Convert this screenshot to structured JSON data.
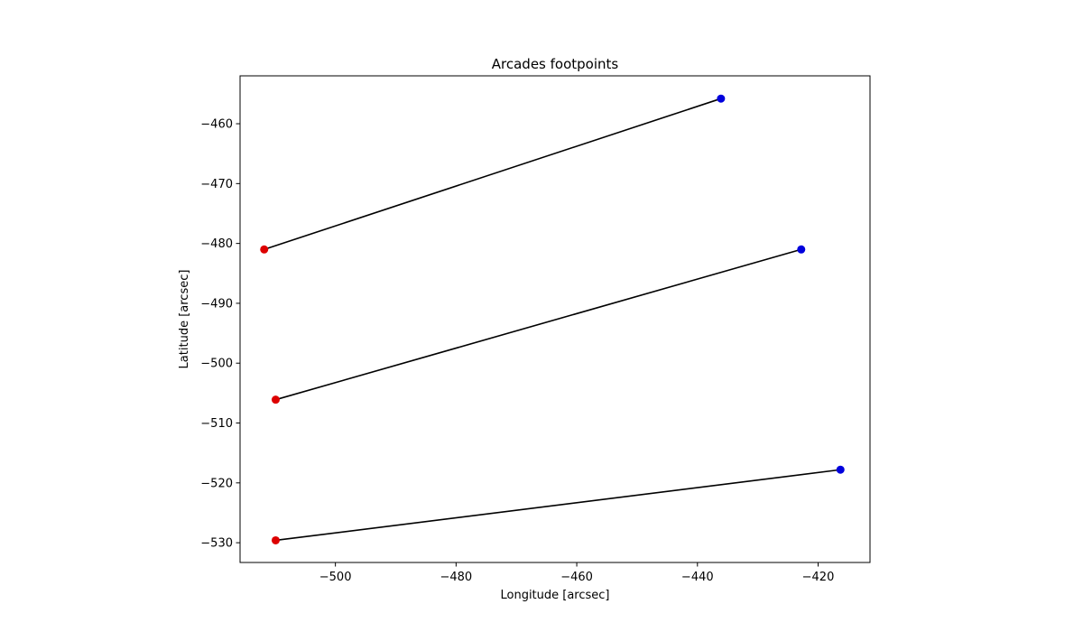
{
  "chart_data": {
    "type": "line",
    "title": "Arcades footpoints",
    "xlabel": "Longitude [arcsec]",
    "ylabel": "Latitude [arcsec]",
    "xlim": [
      -515.8,
      -411.4
    ],
    "ylim": [
      -533.3,
      -452.0
    ],
    "xticks": [
      -500,
      -480,
      -460,
      -440,
      -420
    ],
    "yticks": [
      -530,
      -520,
      -510,
      -500,
      -490,
      -480,
      -470,
      -460
    ],
    "xtick_labels": [
      "−500",
      "−480",
      "−460",
      "−440",
      "−420"
    ],
    "ytick_labels": [
      "−530",
      "−520",
      "−510",
      "−500",
      "−490",
      "−480",
      "−470",
      "−460"
    ],
    "grid": false,
    "line_color": "#000000",
    "start_color": "#dd0000",
    "end_color": "#0000dd",
    "series": [
      {
        "x": [
          -511.8,
          -436.1
        ],
        "y": [
          -481.0,
          -455.8
        ]
      },
      {
        "x": [
          -509.9,
          -422.8
        ],
        "y": [
          -506.1,
          -481.0
        ]
      },
      {
        "x": [
          -509.9,
          -416.3
        ],
        "y": [
          -529.6,
          -517.8
        ]
      }
    ]
  }
}
